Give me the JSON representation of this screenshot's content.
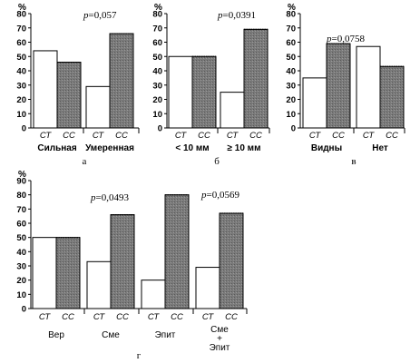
{
  "figure": {
    "panel_letters": [
      "а",
      "б",
      "в",
      "г"
    ]
  },
  "chart_data": [
    {
      "type": "bar",
      "panel": "а",
      "ylabel": "%",
      "ylim": [
        0,
        80
      ],
      "yticks": [
        "0",
        "10",
        "20",
        "30",
        "40",
        "50",
        "60",
        "70",
        "80"
      ],
      "groups": [
        "Сильная",
        "Умеренная"
      ],
      "series_labels": [
        "СТ",
        "СС"
      ],
      "values": [
        [
          54,
          46
        ],
        [
          29,
          66
        ]
      ],
      "p_symbol": "p",
      "p_value": "=0,057",
      "fill_colors": [
        "#ffffff",
        "#7a7a7a"
      ]
    },
    {
      "type": "bar",
      "panel": "б",
      "ylabel": "%",
      "ylim": [
        0,
        80
      ],
      "yticks": [
        "0",
        "10",
        "20",
        "30",
        "40",
        "50",
        "60",
        "70",
        "80"
      ],
      "groups": [
        "< 10 мм",
        "≥ 10 мм"
      ],
      "series_labels": [
        "СТ",
        "СС"
      ],
      "values": [
        [
          50,
          50
        ],
        [
          25,
          69
        ]
      ],
      "p_symbol": "p",
      "p_value": "=0,0391",
      "fill_colors": [
        "#ffffff",
        "#7a7a7a"
      ]
    },
    {
      "type": "bar",
      "panel": "в",
      "ylabel": "%",
      "ylim": [
        0,
        80
      ],
      "yticks": [
        "0",
        "10",
        "20",
        "30",
        "40",
        "50",
        "60",
        "70",
        "80"
      ],
      "groups": [
        "Видны",
        "Нет"
      ],
      "series_labels": [
        "СТ",
        "СС"
      ],
      "values": [
        [
          35,
          59
        ],
        [
          57,
          43
        ]
      ],
      "p_symbol": "p",
      "p_value": "=0,0758",
      "fill_colors": [
        "#ffffff",
        "#7a7a7a"
      ]
    },
    {
      "type": "bar",
      "panel": "г",
      "ylabel": "%",
      "ylim": [
        0,
        90
      ],
      "yticks": [
        "0",
        "10",
        "20",
        "30",
        "40",
        "50",
        "60",
        "70",
        "80",
        "90"
      ],
      "groups": [
        "Вер",
        "Сме",
        "Эпит",
        "Сме + Эпит"
      ],
      "series_labels": [
        "СТ",
        "СС"
      ],
      "values": [
        [
          50,
          50
        ],
        [
          33,
          66
        ],
        [
          20,
          80
        ],
        [
          29,
          67
        ]
      ],
      "p_annotations": [
        {
          "symbol": "p",
          "value": "=0,0493"
        },
        {
          "symbol": "p",
          "value": "=0,0569"
        }
      ],
      "fill_colors": [
        "#ffffff",
        "#7a7a7a"
      ]
    }
  ]
}
